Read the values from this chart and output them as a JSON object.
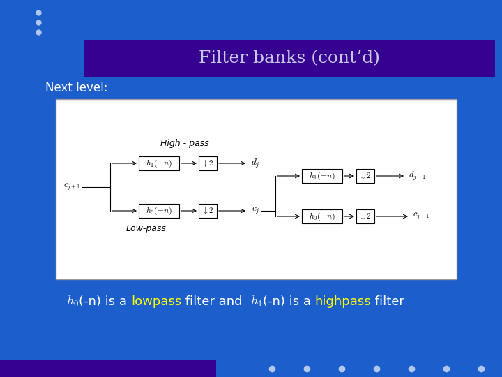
{
  "bg_color": "#1b5ecc",
  "title_bar_color": "#360090",
  "title_text": "Filter banks (cont’d)",
  "title_color": "#c8c8e8",
  "next_level_text": "Next level:",
  "next_level_color": "#ffffff",
  "dot_color": "#b0c8f0",
  "footer_bar_color": "#360090",
  "footer_dot_color": "#b0c8f0",
  "bottom_text": "h₀(-n) is a lowpass filter and  h₁(-n) is a highpass filter",
  "lowpass_color": "#ffff00",
  "highpass_color": "#ffff00",
  "text_color": "#ffffff"
}
